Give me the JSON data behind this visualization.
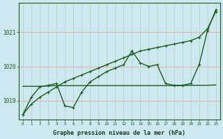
{
  "xlabel": "Graphe pression niveau de la mer (hPa)",
  "bg_color": "#cde8f0",
  "line_color": "#1a5c1a",
  "hours": [
    0,
    1,
    2,
    3,
    4,
    5,
    6,
    7,
    8,
    9,
    10,
    11,
    12,
    13,
    14,
    15,
    16,
    17,
    18,
    19,
    20,
    21,
    22,
    23
  ],
  "series_diagonal": [
    1018.6,
    1018.9,
    1019.1,
    1019.25,
    1019.4,
    1019.55,
    1019.65,
    1019.75,
    1019.85,
    1019.95,
    1020.05,
    1020.15,
    1020.25,
    1020.35,
    1020.45,
    1020.5,
    1020.55,
    1020.6,
    1020.65,
    1020.7,
    1020.75,
    1020.85,
    1021.1,
    1021.6
  ],
  "series_wiggly": [
    1018.6,
    1019.1,
    1019.4,
    1019.45,
    1019.5,
    1018.85,
    1018.8,
    1019.25,
    1019.55,
    1019.7,
    1019.85,
    1019.95,
    1020.05,
    1020.45,
    1020.1,
    1020.0,
    1020.05,
    1019.5,
    1019.45,
    1019.45,
    1019.5,
    1020.05,
    1021.05,
    1021.65
  ],
  "series_flat": [
    1019.42,
    1019.42,
    1019.42,
    1019.43,
    1019.44,
    1019.44,
    1019.44,
    1019.44,
    1019.44,
    1019.44,
    1019.44,
    1019.44,
    1019.44,
    1019.44,
    1019.44,
    1019.44,
    1019.44,
    1019.44,
    1019.44,
    1019.44,
    1019.45,
    1019.45,
    1019.45,
    1019.46
  ],
  "ylim_min": 1018.45,
  "ylim_max": 1021.85,
  "yticks": [
    1019,
    1020,
    1021
  ],
  "ytick_labels": [
    "1019",
    "1020",
    "1021"
  ],
  "xtick_labels": [
    "0",
    "1",
    "2",
    "3",
    "4",
    "5",
    "6",
    "7",
    "8",
    "9",
    "10",
    "11",
    "12",
    "13",
    "14",
    "15",
    "16",
    "17",
    "18",
    "19",
    "20",
    "21",
    "22",
    "23"
  ],
  "grid_color_h": "#f0a0a0",
  "grid_color_v": "#b0d8b0",
  "marker_size": 3.5,
  "line_width": 1.0,
  "font_size_x": 4.2,
  "font_size_y": 5.5,
  "font_size_label": 6.0
}
